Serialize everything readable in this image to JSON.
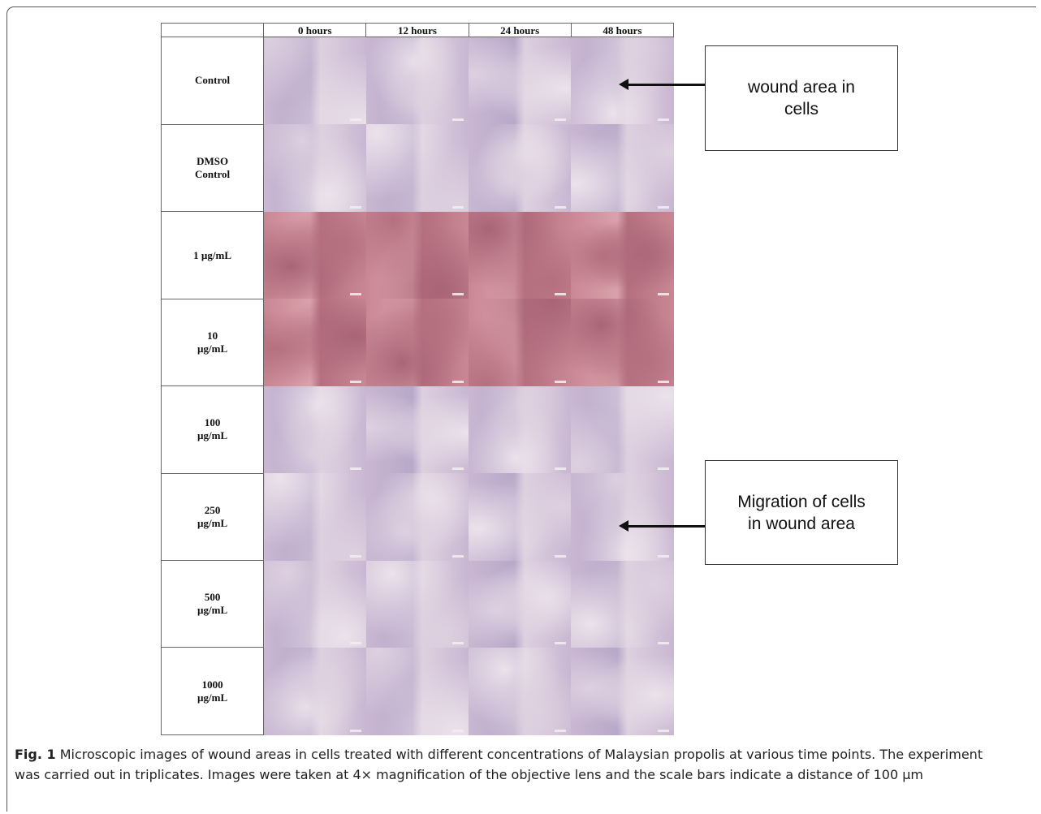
{
  "columns": [
    "0 hours",
    "12 hours",
    "24 hours",
    "48 hours"
  ],
  "rows": [
    {
      "label": "Control",
      "tone": "blue"
    },
    {
      "label": "DMSO\nControl",
      "tone": "blue"
    },
    {
      "label": "1 µg/mL",
      "tone": "red"
    },
    {
      "label": "10\nµg/mL",
      "tone": "red"
    },
    {
      "label": "100\nµg/mL",
      "tone": "blue"
    },
    {
      "label": "250\nµg/mL",
      "tone": "blue"
    },
    {
      "label": "500\nµg/mL",
      "tone": "blue"
    },
    {
      "label": "1000\nµg/mL",
      "tone": "blue"
    }
  ],
  "callouts": {
    "top": "wound area in\ncells",
    "bottom": "Migration of cells\nin wound area"
  },
  "caption": {
    "label": "Fig. 1",
    "text": " Microscopic images of wound areas in cells treated with different concentrations of Malaysian propolis at various time points. The experiment was carried out in triplicates. Images were taken at 4× magnification of the objective lens and the scale bars indicate a distance of 100 µm"
  }
}
